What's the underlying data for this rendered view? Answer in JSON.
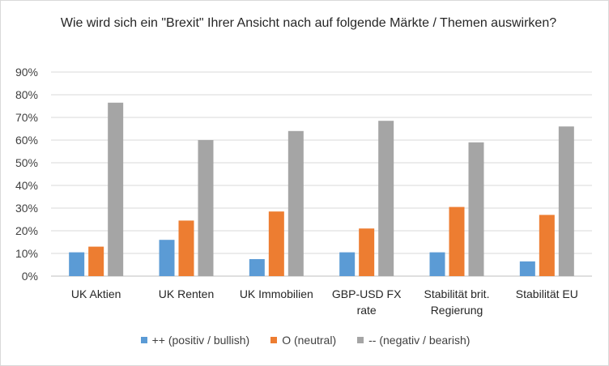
{
  "chart_data": {
    "type": "bar",
    "title": "Wie wird sich ein \"Brexit\" Ihrer Ansicht nach auf folgende Märkte / Themen auswirken?",
    "categories": [
      [
        "UK Aktien"
      ],
      [
        "UK Renten"
      ],
      [
        "UK Immobilien"
      ],
      [
        "GBP-USD FX",
        "rate"
      ],
      [
        "Stabilität brit.",
        "Regierung"
      ],
      [
        "Stabilität EU"
      ]
    ],
    "series": [
      {
        "name": "++ (positiv / bullish)",
        "color": "#5b9bd5",
        "values": [
          10.5,
          16,
          7.5,
          10.5,
          10.5,
          6.5
        ]
      },
      {
        "name": "O (neutral)",
        "color": "#ed7d31",
        "values": [
          13,
          24.5,
          28.5,
          21,
          30.5,
          27
        ]
      },
      {
        "name": "-- (negativ / bearish)",
        "color": "#a5a5a5",
        "values": [
          76.5,
          60,
          64,
          68.5,
          59,
          66
        ]
      }
    ],
    "ylim": [
      0,
      90
    ],
    "yticks": [
      "0%",
      "10%",
      "20%",
      "30%",
      "40%",
      "50%",
      "60%",
      "70%",
      "80%",
      "90%"
    ],
    "grid": true,
    "legend_position": "bottom",
    "xlabel": "",
    "ylabel": ""
  }
}
